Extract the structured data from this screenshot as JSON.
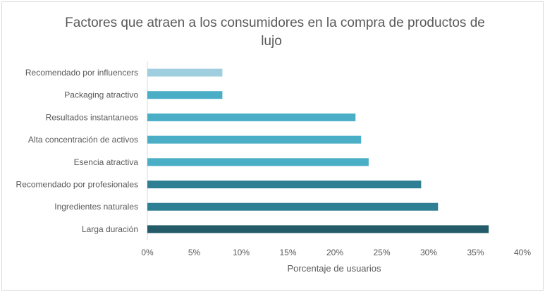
{
  "chart_data": {
    "type": "bar",
    "orientation": "horizontal",
    "title_lines": [
      "Factores que atraen a los consumidores en la compra de productos de",
      "lujo"
    ],
    "xlabel": "Porcentaje de usuarios",
    "ylabel": "",
    "xlim": [
      0,
      40
    ],
    "x_ticks": [
      "0%",
      "5%",
      "10%",
      "15%",
      "20%",
      "25%",
      "30%",
      "35%",
      "40%"
    ],
    "grid": false,
    "legend": "none",
    "categories": [
      "Recomendado por influencers",
      "Packaging atractivo",
      "Resultados instantaneos",
      "Alta concentración de activos",
      "Esencia atractiva",
      "Recomendado por profesionales",
      "Ingredientes naturales",
      "Larga duración"
    ],
    "values": [
      8.0,
      8.0,
      22.2,
      22.8,
      23.6,
      29.2,
      31.0,
      36.4
    ],
    "colors": [
      "#9fcfdf",
      "#4aaec6",
      "#4aaec6",
      "#4aaec6",
      "#4aaec6",
      "#2e7f93",
      "#2e7f93",
      "#235b68"
    ]
  }
}
